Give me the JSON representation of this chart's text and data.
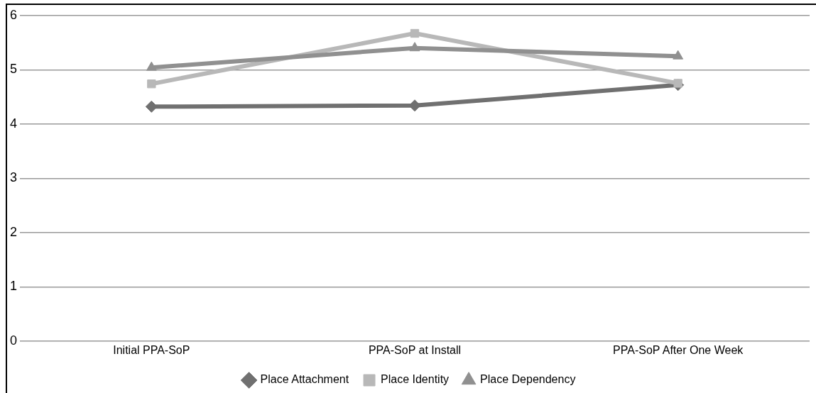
{
  "chart_data": {
    "type": "line",
    "categories": [
      "Initial PPA-SoP",
      "PPA-SoP at Install",
      "PPA-SoP After One Week"
    ],
    "series": [
      {
        "name": "Place Attachment",
        "color": "#707070",
        "marker": "diamond",
        "values": [
          4.32,
          4.34,
          4.72
        ]
      },
      {
        "name": "Place Identity",
        "color": "#b8b8b8",
        "marker": "square",
        "values": [
          4.74,
          5.67,
          4.75
        ]
      },
      {
        "name": "Place Dependency",
        "color": "#909090",
        "marker": "triangle",
        "values": [
          5.04,
          5.4,
          5.25
        ]
      }
    ],
    "ylim": [
      0,
      6
    ],
    "yticks": [
      0,
      1,
      2,
      3,
      4,
      5,
      6
    ],
    "grid": "y",
    "legend": "bottom",
    "line_style": "solid"
  }
}
